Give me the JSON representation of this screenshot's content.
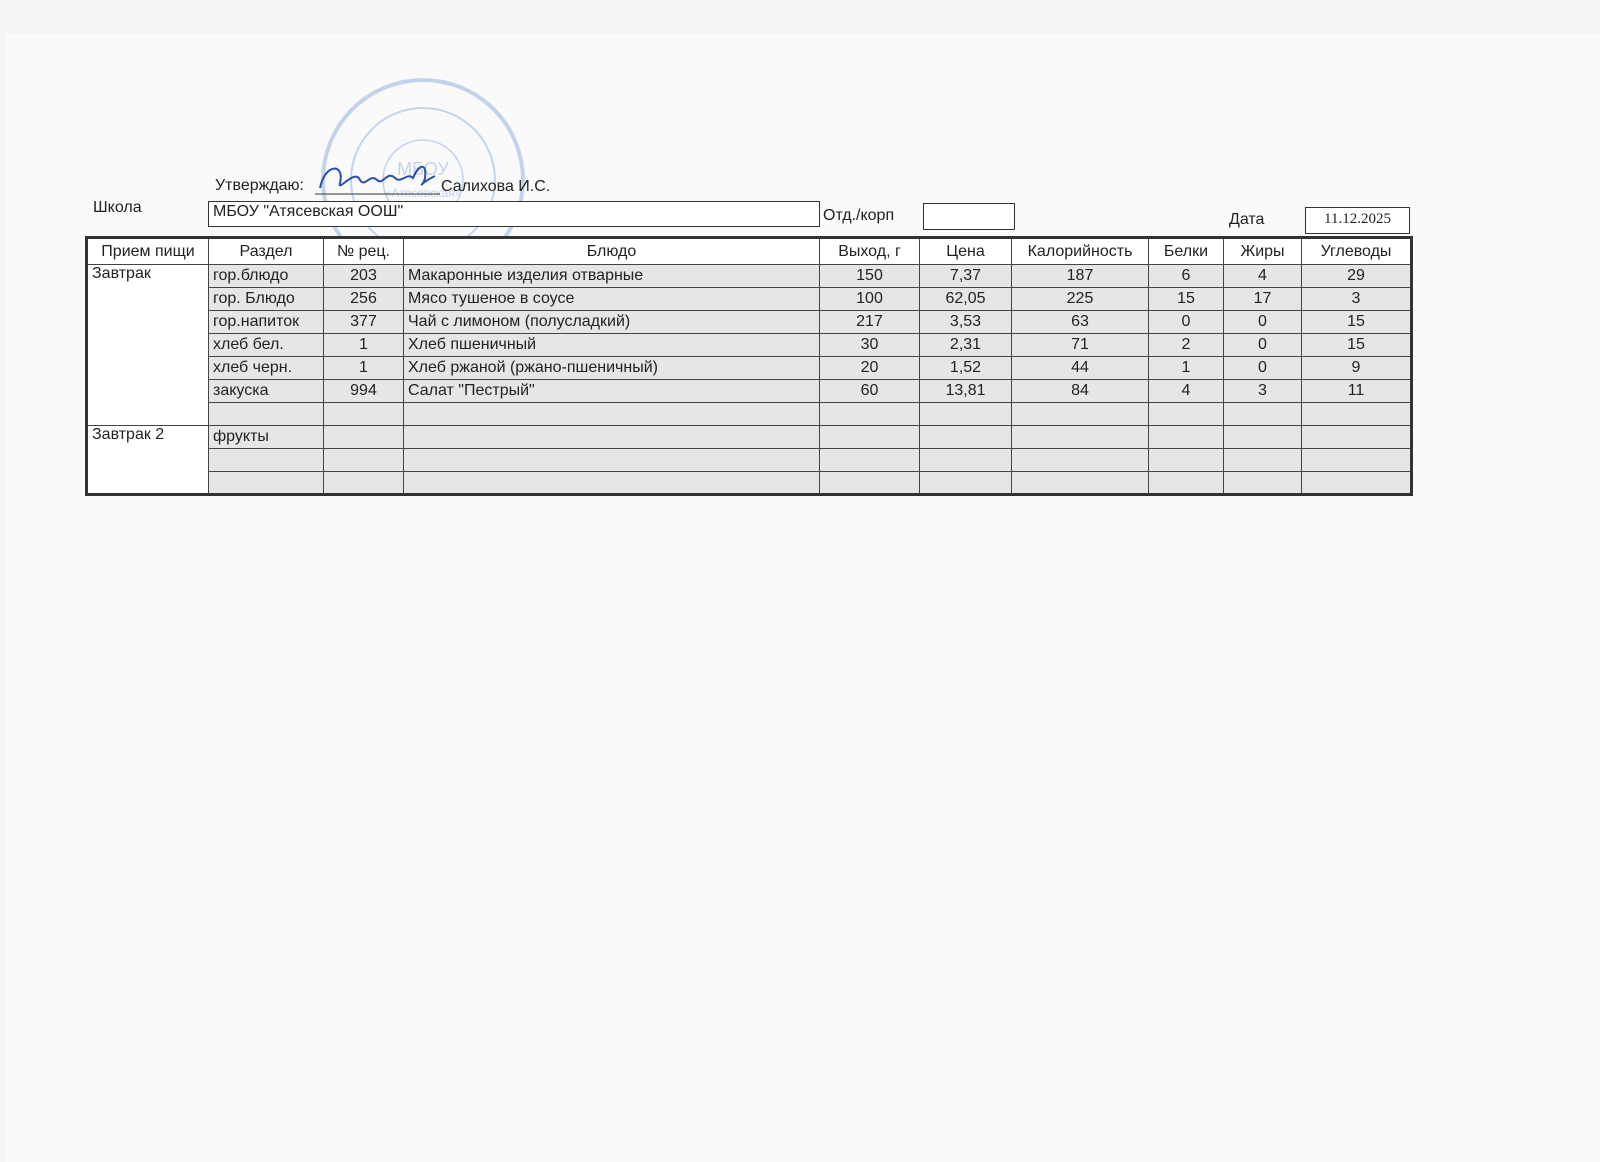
{
  "header": {
    "approve_label": "Утверждаю:",
    "approver": "Салихова И.С.",
    "school_label": "Школа",
    "school_value": "МБОУ \"Атясевская ООШ\"",
    "dept_label": "Отд./корп",
    "dept_value": "",
    "date_label": "Дата",
    "date_value": "11.12.2025"
  },
  "stamp": {
    "text": "МБОУ «Атясевская ООШ» ОГРН 1031835...318",
    "color": "#5b8fd0"
  },
  "table": {
    "columns": [
      "Прием пищи",
      "Раздел",
      "№ рец.",
      "Блюдо",
      "Выход, г",
      "Цена",
      "Калорийность",
      "Белки",
      "Жиры",
      "Углеводы"
    ],
    "meals": [
      {
        "name": "Завтрак",
        "rows": [
          [
            "гор.блюдо",
            "203",
            "Макаронные изделия отварные",
            "150",
            "7,37",
            "187",
            "6",
            "4",
            "29"
          ],
          [
            "гор. Блюдо",
            "256",
            "Мясо тушеное в соусе",
            "100",
            "62,05",
            "225",
            "15",
            "17",
            "3"
          ],
          [
            "гор.напиток",
            "377",
            "Чай с лимоном (полусладкий)",
            "217",
            "3,53",
            "63",
            "0",
            "0",
            "15"
          ],
          [
            "хлеб бел.",
            "1",
            "Хлеб пшеничный",
            "30",
            "2,31",
            "71",
            "2",
            "0",
            "15"
          ],
          [
            "хлеб черн.",
            "1",
            "Хлеб ржаной (ржано-пшеничный)",
            "20",
            "1,52",
            "44",
            "1",
            "0",
            "9"
          ],
          [
            "закуска",
            "994",
            "Салат \"Пестрый\"",
            "60",
            "13,81",
            "84",
            "4",
            "3",
            "11"
          ],
          [
            "",
            "",
            "",
            "",
            "",
            "",
            "",
            "",
            ""
          ]
        ]
      },
      {
        "name": "Завтрак 2",
        "rows": [
          [
            "фрукты",
            "",
            "",
            "",
            "",
            "",
            "",
            "",
            ""
          ],
          [
            "",
            "",
            "",
            "",
            "",
            "",
            "",
            "",
            ""
          ],
          [
            "",
            "",
            "",
            "",
            "",
            "",
            "",
            "",
            ""
          ]
        ]
      }
    ]
  }
}
